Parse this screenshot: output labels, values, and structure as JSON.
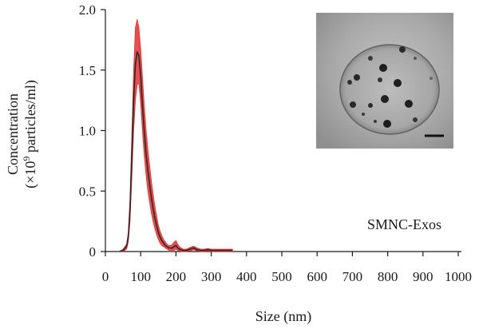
{
  "chart_data": {
    "type": "line",
    "title": "",
    "xlabel": "Size (nm)",
    "ylabel_line1": "Concentration",
    "ylabel_line2_prefix": "(×10",
    "ylabel_line2_sup": "9",
    "ylabel_line2_suffix": " particles/ml)",
    "xlim": [
      0,
      1000
    ],
    "ylim": [
      0,
      2.0
    ],
    "x_ticks": [
      0,
      100,
      200,
      300,
      400,
      500,
      600,
      700,
      800,
      900,
      1000
    ],
    "x_tick_labels": [
      "0",
      "100",
      "200",
      "300",
      "400",
      "500",
      "600",
      "700",
      "800",
      "900",
      "1000"
    ],
    "y_ticks": [
      0,
      0.5,
      1.0,
      1.5,
      2.0
    ],
    "y_tick_labels": [
      "0",
      "0.5",
      "1.0",
      "1.5",
      "2.0"
    ],
    "grid": false,
    "annotation": "SMNC-Exos",
    "inset": "TEM micrograph with scale bar",
    "colors": {
      "mean_line": "#2a2a2a",
      "error_band": "#e03030",
      "inset_bg": "#a9a9a9"
    },
    "series": [
      {
        "role": "mean",
        "x": [
          40,
          50,
          60,
          65,
          70,
          75,
          80,
          85,
          90,
          95,
          100,
          105,
          110,
          115,
          120,
          125,
          130,
          135,
          140,
          145,
          150,
          155,
          160,
          165,
          170,
          175,
          180,
          185,
          190,
          195,
          200,
          205,
          210,
          215,
          220,
          230,
          240,
          250,
          260,
          270,
          280,
          290,
          300,
          310,
          320,
          330,
          340,
          350,
          360
        ],
        "y": [
          0.0,
          0.01,
          0.04,
          0.12,
          0.35,
          0.8,
          1.25,
          1.55,
          1.65,
          1.62,
          1.45,
          1.22,
          1.0,
          0.82,
          0.68,
          0.56,
          0.45,
          0.36,
          0.28,
          0.22,
          0.16,
          0.12,
          0.09,
          0.07,
          0.05,
          0.04,
          0.03,
          0.03,
          0.03,
          0.04,
          0.05,
          0.03,
          0.02,
          0.015,
          0.01,
          0.01,
          0.02,
          0.03,
          0.015,
          0.01,
          0.01,
          0.015,
          0.01,
          0.01,
          0.01,
          0.01,
          0.01,
          0.01,
          0.01
        ]
      },
      {
        "role": "error_band",
        "x": [
          40,
          50,
          60,
          65,
          70,
          75,
          80,
          85,
          90,
          95,
          100,
          105,
          110,
          115,
          120,
          125,
          130,
          135,
          140,
          145,
          150,
          155,
          160,
          165,
          170,
          175,
          180,
          185,
          190,
          195,
          200,
          205,
          210,
          215,
          220,
          230,
          240,
          250,
          260,
          270,
          280,
          290,
          300,
          310,
          320,
          330,
          340,
          350,
          360
        ],
        "upper": [
          0.0,
          0.02,
          0.06,
          0.16,
          0.45,
          0.98,
          1.5,
          1.85,
          1.92,
          1.85,
          1.68,
          1.45,
          1.22,
          1.02,
          0.86,
          0.72,
          0.59,
          0.48,
          0.38,
          0.3,
          0.22,
          0.17,
          0.13,
          0.1,
          0.08,
          0.06,
          0.05,
          0.05,
          0.06,
          0.08,
          0.09,
          0.06,
          0.04,
          0.03,
          0.02,
          0.02,
          0.035,
          0.045,
          0.03,
          0.02,
          0.02,
          0.025,
          0.02,
          0.02,
          0.02,
          0.02,
          0.02,
          0.02,
          0.02
        ],
        "lower": [
          0.0,
          0.0,
          0.02,
          0.08,
          0.25,
          0.62,
          1.0,
          1.25,
          1.38,
          1.39,
          1.22,
          1.0,
          0.8,
          0.64,
          0.51,
          0.41,
          0.32,
          0.25,
          0.19,
          0.14,
          0.1,
          0.07,
          0.05,
          0.04,
          0.03,
          0.02,
          0.01,
          0.01,
          0.01,
          0.01,
          0.02,
          0.01,
          0.005,
          0.0,
          0.0,
          0.0,
          0.005,
          0.015,
          0.005,
          0.0,
          0.0,
          0.005,
          0.0,
          0.0,
          0.0,
          0.0,
          0.0,
          0.0,
          0.0
        ]
      }
    ]
  }
}
